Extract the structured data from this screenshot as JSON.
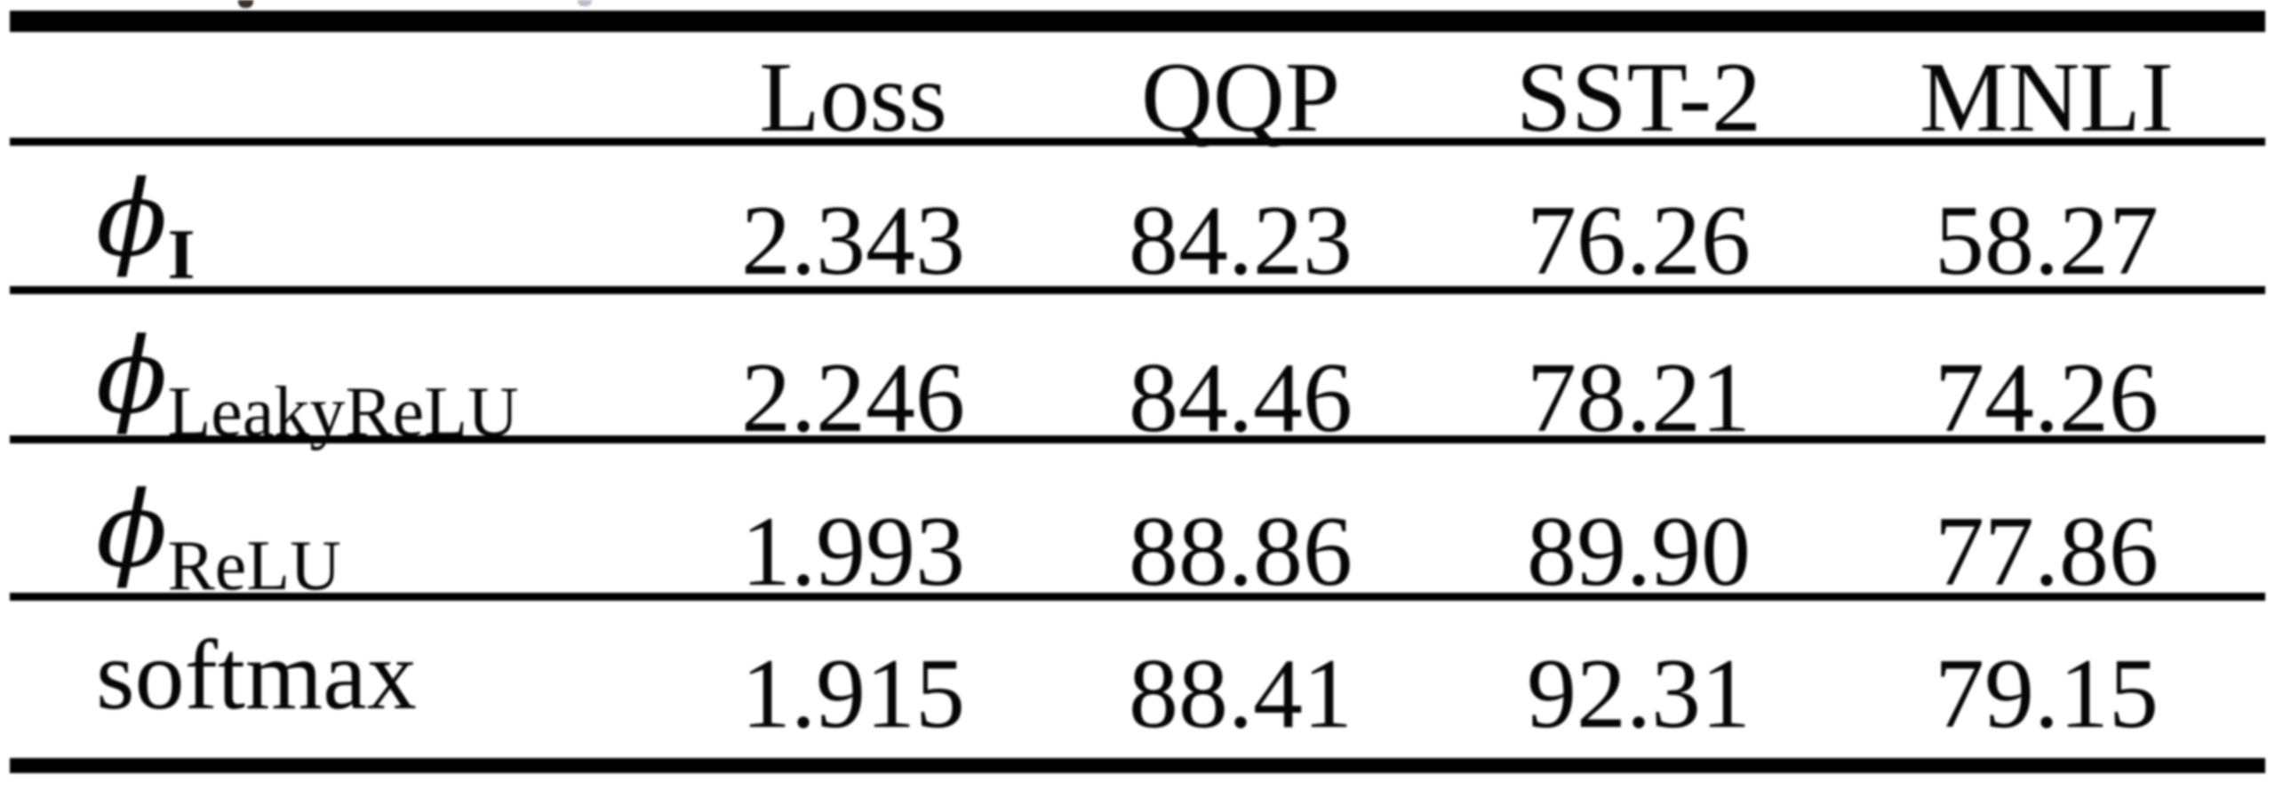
{
  "page": {
    "background": "#ffffff",
    "text_color": "#060606",
    "rule_color": "#000000"
  },
  "table": {
    "columns": [
      "",
      "Loss",
      "QQP",
      "SST-2",
      "MNLI"
    ],
    "rows": [
      {
        "label": {
          "base": "ϕ",
          "sub": "I"
        },
        "values": [
          "2.343",
          "84.23",
          "76.26",
          "58.27"
        ]
      },
      {
        "label": {
          "base": "ϕ",
          "sub": "LeakyReLU"
        },
        "values": [
          "2.246",
          "84.46",
          "78.21",
          "74.26"
        ]
      },
      {
        "label": {
          "base": "ϕ",
          "sub": "ReLU"
        },
        "values": [
          "1.993",
          "88.86",
          "89.90",
          "77.86"
        ]
      },
      {
        "label": {
          "base": "softmax",
          "sub": ""
        },
        "values": [
          "1.915",
          "88.41",
          "92.31",
          "79.15"
        ]
      }
    ]
  },
  "chart_data": {
    "type": "table",
    "columns": [
      "Loss",
      "QQP",
      "SST-2",
      "MNLI"
    ],
    "row_labels": [
      "phi_I",
      "phi_LeakyReLU",
      "phi_ReLU",
      "softmax"
    ],
    "rows": [
      [
        2.343,
        84.23,
        76.26,
        58.27
      ],
      [
        2.246,
        84.46,
        78.21,
        74.26
      ],
      [
        1.993,
        88.86,
        89.9,
        77.86
      ],
      [
        1.915,
        88.41,
        92.31,
        79.15
      ]
    ]
  }
}
